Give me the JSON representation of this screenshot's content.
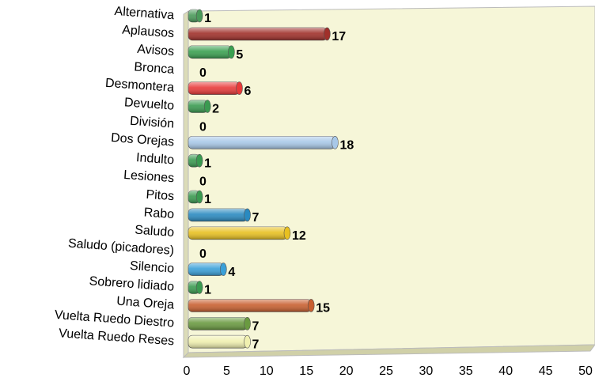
{
  "chart_data": {
    "type": "bar",
    "orientation": "horizontal",
    "categories": [
      "Alternativa",
      "Aplausos",
      "Avisos",
      "Bronca",
      "Desmontera",
      "Devuelto",
      "División",
      "Dos Orejas",
      "Indulto",
      "Lesiones",
      "Pitos",
      "Rabo",
      "Saludo",
      "Saludo (picadores)",
      "Silencio",
      "Sobrero lidiado",
      "Una Oreja",
      "Vuelta Ruedo Diestro",
      "Vuelta Ruedo Reses"
    ],
    "values": [
      1,
      17,
      5,
      0,
      6,
      2,
      0,
      18,
      1,
      0,
      1,
      7,
      12,
      0,
      4,
      1,
      15,
      7,
      7
    ],
    "colors": [
      "#4a9a5a",
      "#a0302a",
      "#3aa050",
      "#3aa050",
      "#e83a3a",
      "#3a9a50",
      "#3a9a50",
      "#a8c8e8",
      "#3a9a50",
      "#3a9a50",
      "#3a9a50",
      "#2a8ac0",
      "#e8c020",
      "#3aa0d8",
      "#3aa0d8",
      "#3a9a50",
      "#c86030",
      "#6a9a40",
      "#f0f0b0"
    ],
    "xlim": [
      0,
      50
    ],
    "xticks": [
      0,
      5,
      10,
      15,
      20,
      25,
      30,
      35,
      40,
      45,
      50
    ],
    "grid": false
  }
}
